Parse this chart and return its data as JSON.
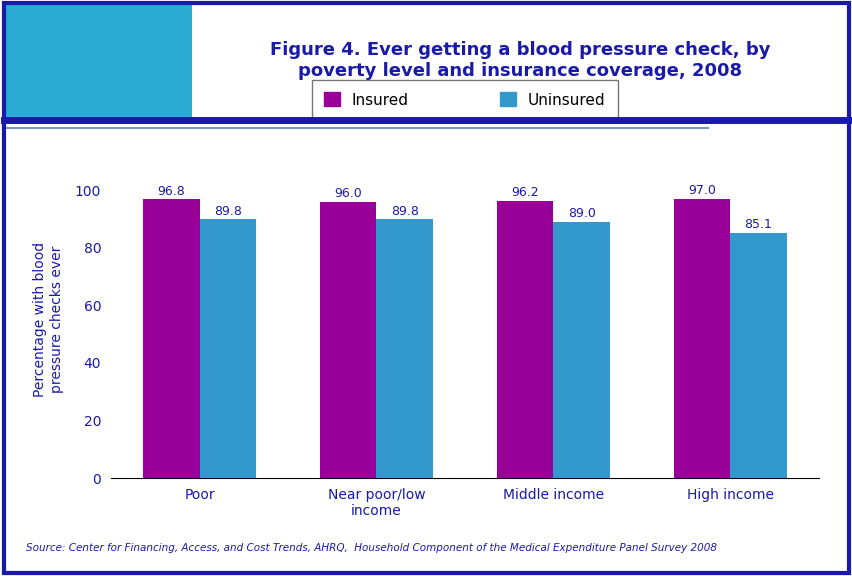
{
  "title": "Figure 4. Ever getting a blood pressure check, by\npoverty level and insurance coverage, 2008",
  "categories": [
    "Poor",
    "Near poor/low\nincome",
    "Middle income",
    "High income"
  ],
  "insured_values": [
    96.8,
    96.0,
    96.2,
    97.0
  ],
  "uninsured_values": [
    89.8,
    89.8,
    89.0,
    85.1
  ],
  "insured_color": "#990099",
  "uninsured_color": "#3399CC",
  "ylabel": "Percentage with blood\npressure checks ever",
  "ylim": [
    0,
    110
  ],
  "yticks": [
    0,
    20,
    40,
    60,
    80,
    100
  ],
  "legend_labels": [
    "Insured",
    "Uninsured"
  ],
  "source_text": "Source: Center for Financing, Access, and Cost Trends, AHRQ,  Household Component of the Medical Expenditure Panel Survey 2008",
  "title_color": "#1a1aaa",
  "ylabel_color": "#1a1aaa",
  "bar_width": 0.32,
  "value_label_color": "#1a1aaa",
  "value_label_fontsize": 9,
  "background_color": "#FFFFFF",
  "border_color": "#1a1aaa",
  "header_line_color": "#1a1aaa",
  "axis_label_fontsize": 10,
  "title_fontsize": 13,
  "source_color": "#1a1aaa",
  "tick_label_color": "#1a1aaa"
}
